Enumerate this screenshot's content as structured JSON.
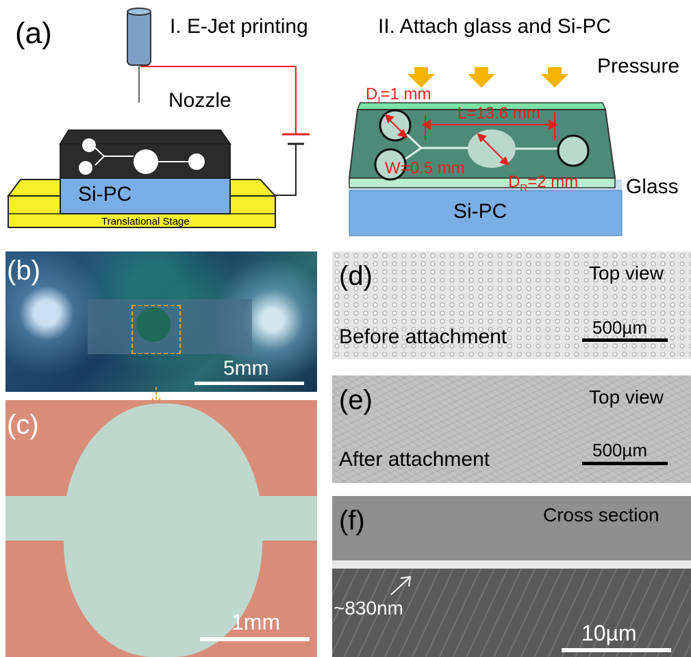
{
  "panel_a": {
    "label": "(a)",
    "step1_title": "I. E-Jet printing",
    "step2_title": "II. Attach glass and Si-PC",
    "nozzle_label": "Nozzle",
    "sipc_label_left": "Si-PC",
    "stage_label": "Translational Stage",
    "pressure_label": "Pressure",
    "glass_label": "Glass",
    "sipc_label_right": "Si-PC",
    "dim_di": "D",
    "dim_di_sub": "I",
    "dim_di_val": "=1 mm",
    "dim_l": "L=13.6 mm",
    "dim_w": "W=0.5 mm",
    "dim_dr": "D",
    "dim_dr_sub": "R",
    "dim_dr_val": "=2 mm"
  },
  "panel_b": {
    "label": "(b)",
    "scale": "5mm"
  },
  "panel_c": {
    "label": "(c)",
    "scale": "1mm"
  },
  "panel_d": {
    "label": "(d)",
    "view": "Top view",
    "caption": "Before attachment",
    "scale": "500µm"
  },
  "panel_e": {
    "label": "(e)",
    "view": "Top view",
    "caption": "After attachment",
    "scale": "500µm"
  },
  "panel_f": {
    "label": "(f)",
    "view": "Cross section",
    "thickness": "~830nm",
    "scale": "10µm"
  },
  "colors": {
    "annotation_red": "#e8201c",
    "arrow_orange": "#f5b400",
    "stage_yellow": "#f7ef2a",
    "sipc_blue": "#7aaee6",
    "glass_green": "#4e8a78",
    "substrate_pink": "#d98d78",
    "channel_mint": "#b9d9cd"
  }
}
